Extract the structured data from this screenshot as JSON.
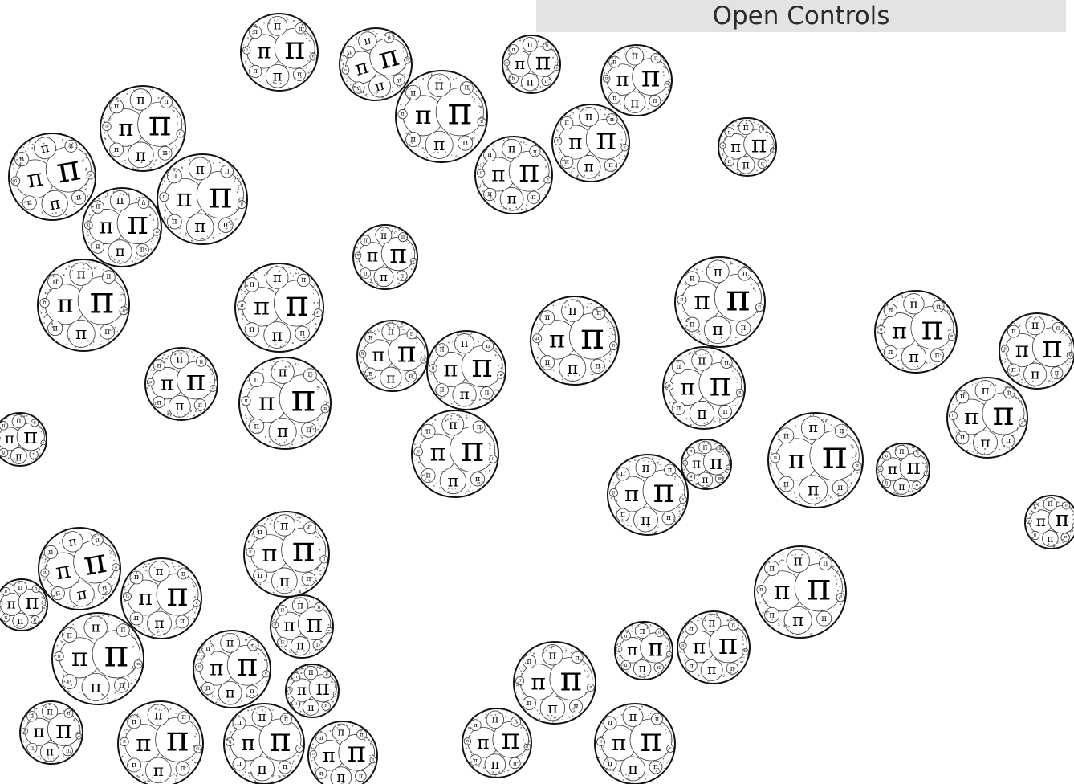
{
  "controls": {
    "label": "Open Controls"
  },
  "glyph": "π"
}
